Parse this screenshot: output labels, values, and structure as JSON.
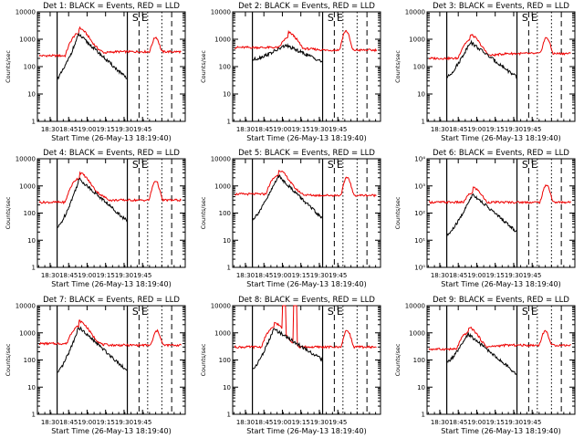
{
  "colors": {
    "events": "#000000",
    "lld": "#ee0000",
    "axes": "#000000",
    "background": "#ffffff"
  },
  "chart_data": [
    {
      "type": "line",
      "title": "Det 1: BLACK = Events, RED = LLD",
      "xlabel": "Start Time (26-May-13 18:19:40)",
      "ylabel": "Counts/sec",
      "xticks": [
        "18:30",
        "18:45",
        "19:00",
        "19:15",
        "19:30",
        "19:45"
      ],
      "yticks": [
        "1",
        "10",
        "100",
        "1000",
        "10000"
      ],
      "ylim": [
        1,
        10000
      ],
      "xlim_min": [
        9,
        118
      ],
      "markers": [
        "S",
        "E"
      ],
      "black_profile": {
        "start": 16,
        "end": 73,
        "peak_t": 33.5,
        "peak": 1500,
        "base": 38,
        "tail": 35
      },
      "red_profile": {
        "base": 250,
        "peak_t": 33.5,
        "peak": 1600,
        "mid": 350,
        "bump_t": 96,
        "bump": 900
      }
    },
    {
      "type": "line",
      "title": "Det 2: BLACK = Events, RED = LLD",
      "xlabel": "Start Time (26-May-13 18:19:40)",
      "ylabel": "Counts/sec",
      "xticks": [
        "18:30",
        "18:45",
        "19:00",
        "19:15",
        "19:30",
        "19:45"
      ],
      "yticks": [
        "1",
        "10",
        "100",
        "1000",
        "10000"
      ],
      "ylim": [
        1,
        10000
      ],
      "xlim_min": [
        9,
        118
      ],
      "markers": [
        "S",
        "E"
      ],
      "black_profile": {
        "start": 16,
        "end": 73,
        "peak_t": 43,
        "peak": 600,
        "base": 180,
        "tail": 150
      },
      "red_profile": {
        "base": 500,
        "peak_t": 45,
        "peak": 1100,
        "mid": 400,
        "bump_t": 92,
        "bump": 1700
      }
    },
    {
      "type": "line",
      "title": "Det 3: BLACK = Events, RED = LLD",
      "xlabel": "Start Time (26-May-13 18:19:40)",
      "ylabel": "Counts/sec",
      "xticks": [
        "18:30",
        "18:45",
        "19:00",
        "19:15",
        "19:30",
        "19:45"
      ],
      "yticks": [
        "1",
        "10",
        "100",
        "1000",
        "10000"
      ],
      "ylim": [
        1,
        10000
      ],
      "xlim_min": [
        9,
        118
      ],
      "markers": [
        "S",
        "E"
      ],
      "black_profile": {
        "start": 16,
        "end": 73,
        "peak_t": 35,
        "peak": 800,
        "base": 40,
        "tail": 40
      },
      "red_profile": {
        "base": 200,
        "peak_t": 35,
        "peak": 900,
        "mid": 300,
        "bump_t": 97,
        "bump": 900
      }
    },
    {
      "type": "line",
      "title": "Det 4: BLACK = Events, RED = LLD",
      "xlabel": "Start Time (26-May-13 18:19:40)",
      "ylabel": "Counts/sec",
      "xticks": [
        "18:30",
        "18:45",
        "19:00",
        "19:15",
        "19:30",
        "19:45"
      ],
      "yticks": [
        "1",
        "10",
        "100",
        "1000",
        "10000"
      ],
      "ylim": [
        1,
        10000
      ],
      "xlim_min": [
        9,
        118
      ],
      "markers": [
        "S",
        "E"
      ],
      "black_profile": {
        "start": 16,
        "end": 73,
        "peak_t": 34,
        "peak": 1800,
        "base": 28,
        "tail": 50
      },
      "red_profile": {
        "base": 250,
        "peak_t": 34,
        "peak": 1900,
        "mid": 300,
        "bump_t": 96,
        "bump": 1300
      }
    },
    {
      "type": "line",
      "title": "Det 5: BLACK = Events, RED = LLD",
      "xlabel": "Start Time (26-May-13 18:19:40)",
      "ylabel": "Counts/sec",
      "xticks": [
        "18:30",
        "18:45",
        "19:00",
        "19:15",
        "19:30",
        "19:45"
      ],
      "yticks": [
        "1",
        "10",
        "100",
        "1000",
        "10000"
      ],
      "ylim": [
        1,
        10000
      ],
      "xlim_min": [
        9,
        118
      ],
      "markers": [
        "S",
        "E"
      ],
      "black_profile": {
        "start": 16,
        "end": 73,
        "peak_t": 37,
        "peak": 2400,
        "base": 60,
        "tail": 60
      },
      "red_profile": {
        "base": 500,
        "peak_t": 37,
        "peak": 2400,
        "mid": 450,
        "bump_t": 93,
        "bump": 1700
      }
    },
    {
      "type": "line",
      "title": "Det 6: BLACK = Events, RED = LLD",
      "xlabel": "Start Time (26-May-13 18:19:40)",
      "ylabel": "Counts/sec",
      "xticks": [
        "18:30",
        "18:45",
        "19:00",
        "19:15",
        "19:30",
        "19:45"
      ],
      "yticks": [
        "10⁰",
        "10¹",
        "10²",
        "10³",
        "10⁴"
      ],
      "ylim": [
        1,
        10000
      ],
      "xlim_min": [
        9,
        118
      ],
      "markers": [
        "S",
        "E"
      ],
      "black_profile": {
        "start": 16,
        "end": 73,
        "peak_t": 37,
        "peak": 500,
        "base": 15,
        "tail": 20
      },
      "red_profile": {
        "base": 250,
        "peak_t": 37,
        "peak": 550,
        "mid": 250,
        "bump_t": 97,
        "bump": 900
      }
    },
    {
      "type": "line",
      "title": "Det 7: BLACK = Events, RED = LLD",
      "xlabel": "Start Time (26-May-13 18:19:40)",
      "ylabel": "Counts/sec",
      "xticks": [
        "18:30",
        "18:45",
        "19:00",
        "19:15",
        "19:30",
        "19:45"
      ],
      "yticks": [
        "1",
        "10",
        "100",
        "1000",
        "10000"
      ],
      "ylim": [
        1,
        10000
      ],
      "xlim_min": [
        9,
        118
      ],
      "markers": [
        "S",
        "E"
      ],
      "black_profile": {
        "start": 16,
        "end": 73,
        "peak_t": 33.5,
        "peak": 1600,
        "base": 32,
        "tail": 40
      },
      "red_profile": {
        "base": 400,
        "peak_t": 33.5,
        "peak": 1700,
        "mid": 350,
        "bump_t": 97,
        "bump": 900
      }
    },
    {
      "type": "line",
      "title": "Det 8: BLACK = Events, RED = LLD",
      "xlabel": "Start Time (26-May-13 18:19:40)",
      "ylabel": "Counts/sec",
      "xticks": [
        "18:30",
        "18:45",
        "19:00",
        "19:15",
        "19:30",
        "19:45"
      ],
      "yticks": [
        "1",
        "10",
        "100",
        "1000",
        "10000"
      ],
      "ylim": [
        1,
        10000
      ],
      "xlim_min": [
        9,
        118
      ],
      "markers": [
        "S",
        "E"
      ],
      "black_profile": {
        "start": 16,
        "end": 73,
        "peak_t": 33.5,
        "peak": 1400,
        "base": 45,
        "tail": 100
      },
      "red_profile": {
        "base": 300,
        "peak_t": 33.5,
        "peak": 1500,
        "mid": 300,
        "bump_t": 93,
        "bump": 1000
      },
      "spikes": [
        [
          40,
          43,
          10000
        ],
        [
          49,
          52,
          10000
        ]
      ]
    },
    {
      "type": "line",
      "title": "Det 9: BLACK = Events, RED = LLD",
      "xlabel": "Start Time (26-May-13 18:19:40)",
      "ylabel": "Counts/sec",
      "xticks": [
        "18:30",
        "18:45",
        "19:00",
        "19:15",
        "19:30",
        "19:45"
      ],
      "yticks": [
        "1",
        "10",
        "100",
        "1000",
        "10000"
      ],
      "ylim": [
        1,
        10000
      ],
      "xlim_min": [
        9,
        118
      ],
      "markers": [
        "S",
        "E"
      ],
      "black_profile": {
        "start": 16,
        "end": 73,
        "peak_t": 33.5,
        "peak": 900,
        "base": 80,
        "tail": 30
      },
      "red_profile": {
        "base": 250,
        "peak_t": 33.5,
        "peak": 1000,
        "mid": 350,
        "bump_t": 96,
        "bump": 900
      }
    }
  ]
}
